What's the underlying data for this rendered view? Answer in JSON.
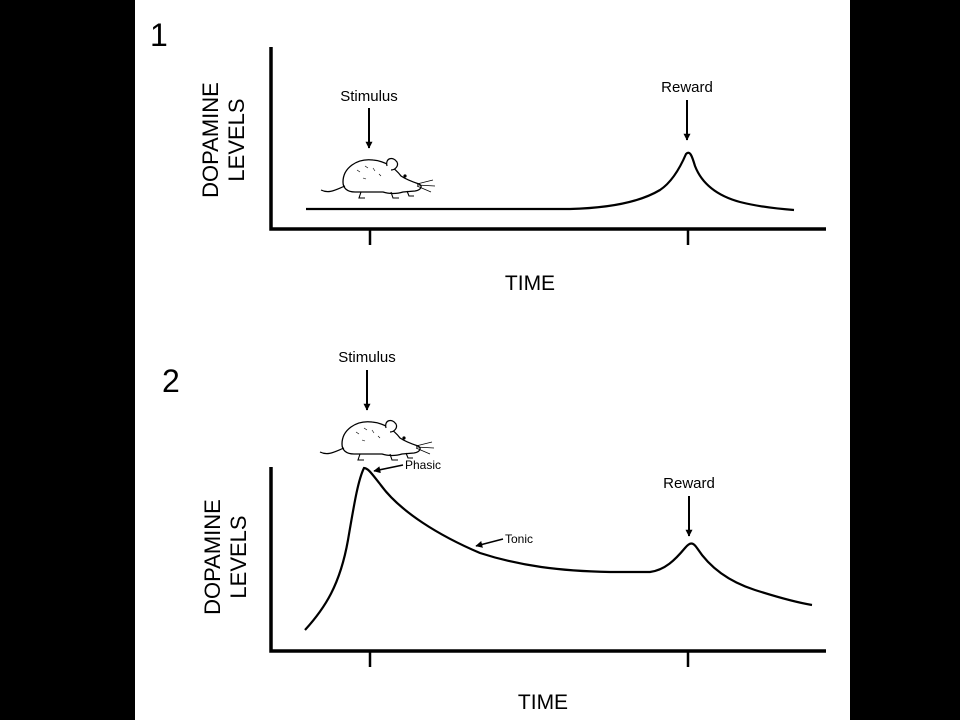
{
  "colors": {
    "background": "#000000",
    "panel": "#ffffff",
    "ink": "#000000"
  },
  "panels": [
    {
      "number": "1",
      "ylabel_line1": "DOPAMINE",
      "ylabel_line2": "LEVELS",
      "xlabel": "TIME",
      "stimulus_label": "Stimulus",
      "reward_label": "Reward",
      "icon": "rat-icon"
    },
    {
      "number": "2",
      "ylabel_line1": "DOPAMINE",
      "ylabel_line2": "LEVELS",
      "xlabel": "TIME",
      "stimulus_label": "Stimulus",
      "reward_label": "Reward",
      "phasic_label": "Phasic",
      "tonic_label": "Tonic",
      "icon": "rat-icon"
    }
  ]
}
